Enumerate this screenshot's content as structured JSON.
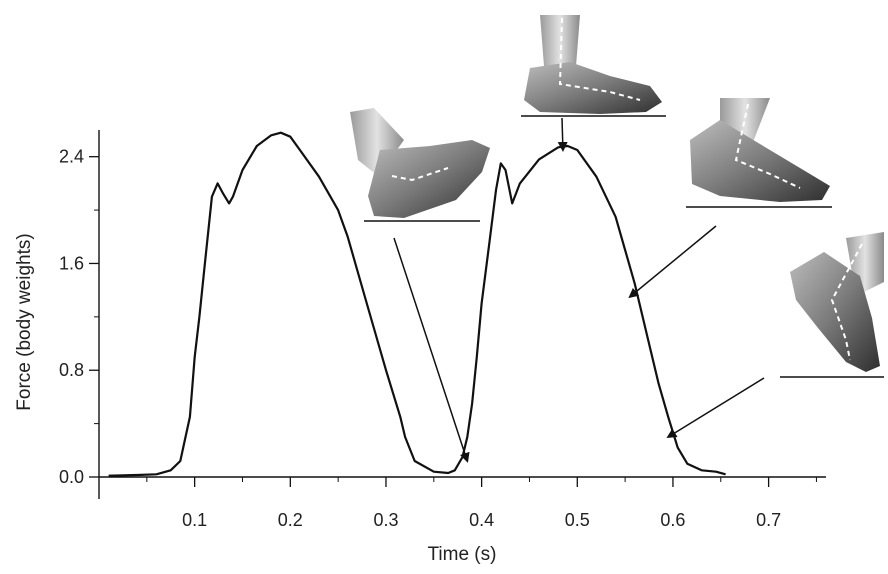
{
  "chart_data": {
    "type": "line",
    "title": "",
    "xlabel": "Time (s)",
    "ylabel": "Force (body weights)",
    "xlim": [
      0.0,
      0.76
    ],
    "ylim": [
      0.0,
      2.6
    ],
    "x_ticks": [
      0.1,
      0.2,
      0.3,
      0.4,
      0.5,
      0.6,
      0.7
    ],
    "x_tick_labels": [
      "0.1",
      "0.2",
      "0.3",
      "0.4",
      "0.5",
      "0.6",
      "0.7"
    ],
    "x_minor_ticks": [
      0.05,
      0.15,
      0.25,
      0.35,
      0.45,
      0.55,
      0.65,
      0.75
    ],
    "y_ticks": [
      0.0,
      0.8,
      1.6,
      2.4
    ],
    "y_tick_labels": [
      "0.0",
      "0.8",
      "1.6",
      "2.4"
    ],
    "y_minor_ticks": [
      0.4,
      1.2,
      2.0
    ],
    "grid": false,
    "legend": "none",
    "baseline": 0.0,
    "colors": {
      "line": "#111111",
      "axis": "#111111",
      "arrow": "#111111"
    },
    "series": [
      {
        "name": "",
        "x": [
          0.01,
          0.04,
          0.06,
          0.075,
          0.085,
          0.095,
          0.1,
          0.105,
          0.11,
          0.118,
          0.124,
          0.13,
          0.136,
          0.14,
          0.15,
          0.165,
          0.18,
          0.19,
          0.2,
          0.21,
          0.23,
          0.25,
          0.26,
          0.28,
          0.3,
          0.315,
          0.32,
          0.33,
          0.35,
          0.365,
          0.372,
          0.38,
          0.385,
          0.39,
          0.395,
          0.4,
          0.408,
          0.415,
          0.42,
          0.425,
          0.432,
          0.44,
          0.46,
          0.48,
          0.49,
          0.5,
          0.52,
          0.54,
          0.56,
          0.575,
          0.585,
          0.595,
          0.605,
          0.615,
          0.63,
          0.645,
          0.655
        ],
        "y": [
          0.01,
          0.015,
          0.02,
          0.05,
          0.12,
          0.45,
          0.9,
          1.2,
          1.55,
          2.1,
          2.2,
          2.12,
          2.05,
          2.1,
          2.3,
          2.48,
          2.56,
          2.58,
          2.55,
          2.45,
          2.25,
          2.0,
          1.8,
          1.3,
          0.8,
          0.45,
          0.3,
          0.12,
          0.04,
          0.03,
          0.05,
          0.15,
          0.3,
          0.55,
          0.9,
          1.3,
          1.75,
          2.15,
          2.35,
          2.3,
          2.05,
          2.2,
          2.38,
          2.47,
          2.48,
          2.45,
          2.25,
          1.95,
          1.45,
          1.0,
          0.7,
          0.45,
          0.22,
          0.1,
          0.05,
          0.04,
          0.02
        ]
      }
    ],
    "annotation_arrows": [
      {
        "points_to": [
          0.385,
          0.12
        ],
        "from": "shoe-heel-contact"
      },
      {
        "points_to": [
          0.485,
          2.45
        ],
        "from": "shoe-foot-flat"
      },
      {
        "points_to": [
          0.555,
          1.35
        ],
        "from": "shoe-heel-off"
      },
      {
        "points_to": [
          0.595,
          0.3
        ],
        "from": "shoe-toe-off"
      }
    ],
    "inset_images": [
      "shoe-heel-contact",
      "shoe-foot-flat",
      "shoe-heel-off",
      "shoe-toe-off"
    ]
  }
}
